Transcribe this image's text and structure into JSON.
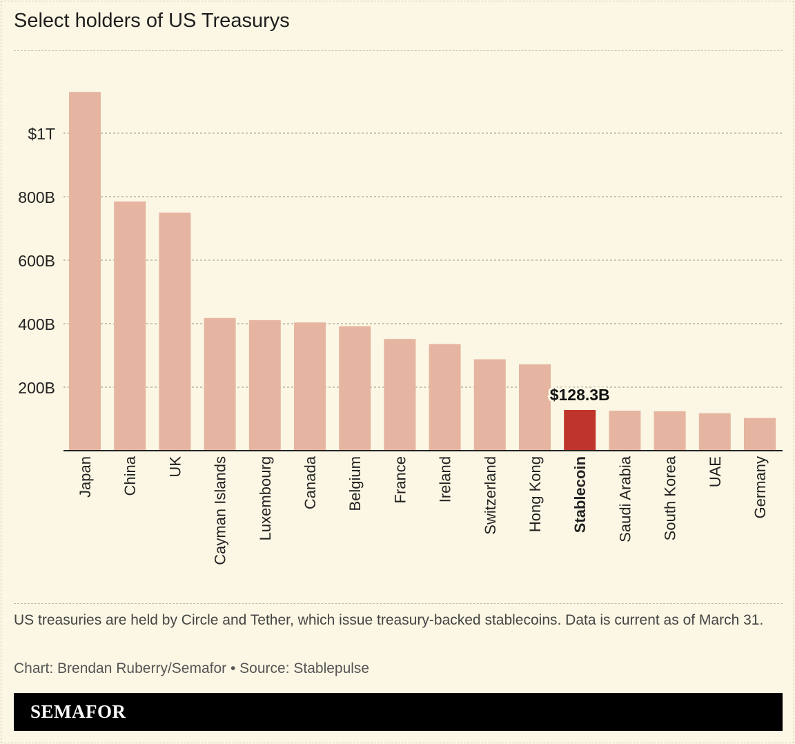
{
  "title": "Select holders of US Treasurys",
  "note": "US treasuries are held by Circle and Tether, which issue treasury-backed stablecoins. Data is current as of March 31.",
  "credit": "Chart: Brendan Ruberry/Semafor • Source: Stablepulse",
  "logo": "SEMAFOR",
  "chart_data": {
    "type": "bar",
    "title": "Select holders of US Treasurys",
    "xlabel": "",
    "ylabel": "",
    "ylim": [
      0,
      1200
    ],
    "yticks": [
      {
        "value": 200,
        "label": "200B"
      },
      {
        "value": 400,
        "label": "400B"
      },
      {
        "value": 600,
        "label": "600B"
      },
      {
        "value": 800,
        "label": "800B"
      },
      {
        "value": 1000,
        "label": "$1T"
      }
    ],
    "grid": true,
    "categories": [
      "Japan",
      "China",
      "UK",
      "Cayman Islands",
      "Luxembourg",
      "Canada",
      "Belgium",
      "France",
      "Ireland",
      "Switzerland",
      "Hong Kong",
      "Stablecoin",
      "Saudi Arabia",
      "South Korea",
      "UAE",
      "Germany"
    ],
    "values": [
      1130,
      785,
      750,
      418,
      411,
      404,
      392,
      352,
      336,
      288,
      272,
      128.3,
      126,
      124,
      118,
      103
    ],
    "highlight_index": 11,
    "highlight_label": "$128.3B",
    "colors": {
      "bar": "#e6b5a1",
      "highlight": "#c0352b",
      "grid": "#aaa590",
      "axis": "#222222"
    }
  }
}
